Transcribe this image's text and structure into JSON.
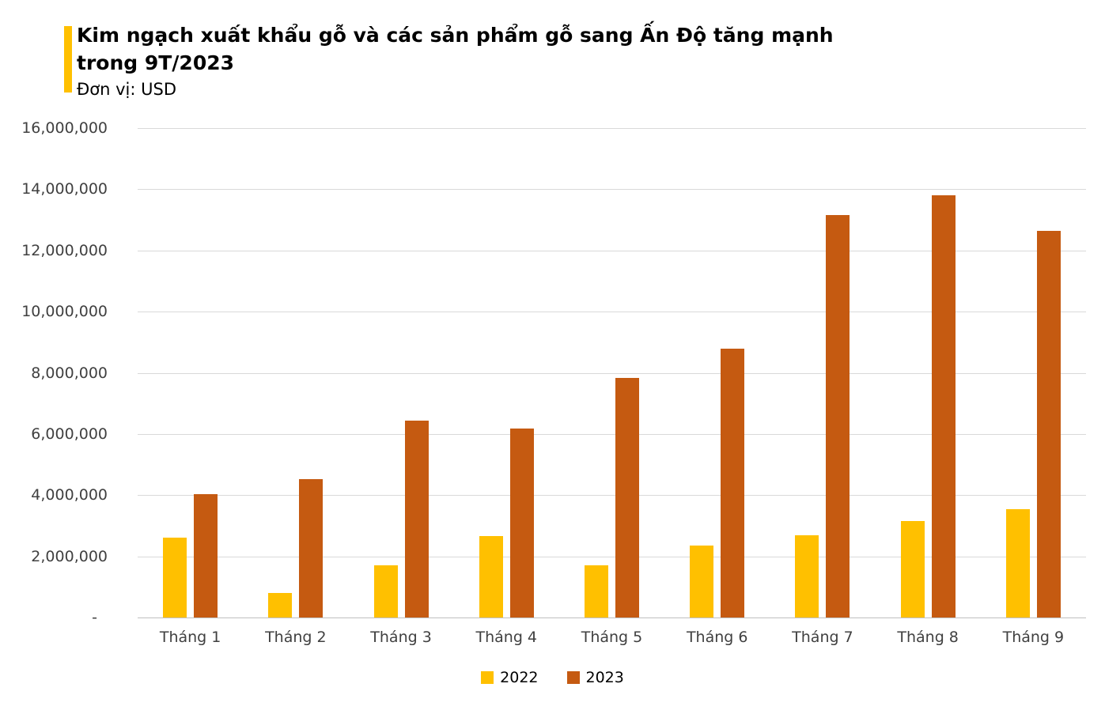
{
  "header": {
    "title_line1": "Kim ngạch xuất khẩu gỗ và các sản phẩm gỗ sang Ấn Độ tăng mạnh",
    "title_line2": "trong 9T/2023",
    "unit_label": "Đơn vị: USD",
    "accent_color": "#FFC000"
  },
  "chart_data": {
    "type": "bar",
    "title": "Kim ngạch xuất khẩu gỗ và các sản phẩm gỗ sang Ấn Độ tăng mạnh trong 9T/2023",
    "unit": "USD",
    "categories": [
      "Tháng 1",
      "Tháng 2",
      "Tháng 3",
      "Tháng 4",
      "Tháng 5",
      "Tháng 6",
      "Tháng 7",
      "Tháng 8",
      "Tháng 9"
    ],
    "series": [
      {
        "name": "2022",
        "color": "#FFC000",
        "values": [
          2600000,
          800000,
          1700000,
          2650000,
          1700000,
          2350000,
          2700000,
          3150000,
          3550000
        ]
      },
      {
        "name": "2023",
        "color": "#C55A11",
        "values": [
          4020000,
          4520000,
          6430000,
          6180000,
          7820000,
          8790000,
          13170000,
          13810000,
          12650000
        ]
      }
    ],
    "ylim": [
      0,
      16000000
    ],
    "ytick_step": 2000000,
    "ytick_labels_top_to_bottom": [
      "16,000,000",
      "14,000,000",
      "12,000,000",
      "10,000,000",
      "8,000,000",
      "6,000,000",
      "4,000,000",
      "2,000,000",
      "-"
    ],
    "grid": true,
    "gridline_color": "#D9D9D9",
    "axis_line_color": "#BFBFBF",
    "label_color": "#404040",
    "legend_position": "bottom"
  }
}
